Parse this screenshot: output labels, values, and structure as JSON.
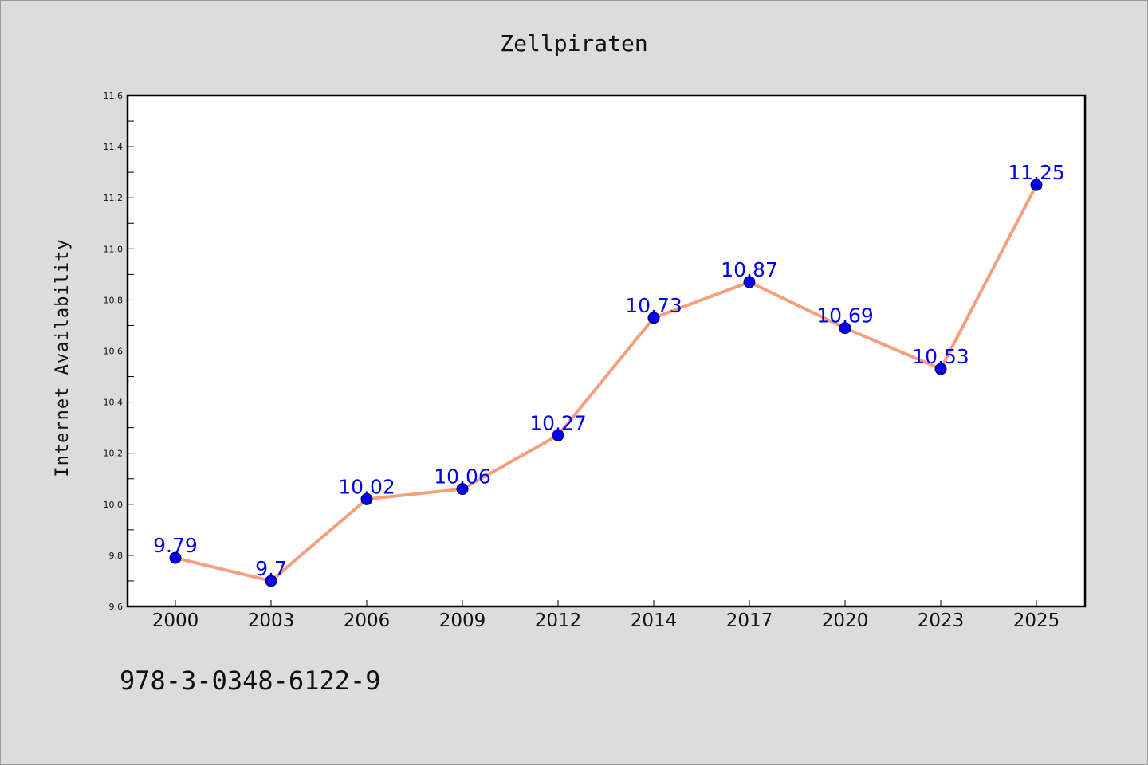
{
  "chart_data": {
    "type": "line",
    "title": "Zellpiraten",
    "xlabel": "",
    "ylabel": "Internet Availability",
    "categories": [
      "2000",
      "2003",
      "2006",
      "2009",
      "2012",
      "2014",
      "2017",
      "2020",
      "2023",
      "2025"
    ],
    "series": [
      {
        "values": [
          9.79,
          9.7,
          10.02,
          10.06,
          10.27,
          10.73,
          10.87,
          10.69,
          10.53,
          11.25
        ],
        "labels": [
          "9.79",
          "9.7",
          "10.02",
          "10.06",
          "10.27",
          "10.73",
          "10.87",
          "10.69",
          "10.53",
          "11.25"
        ],
        "line_color": "#f4a07f",
        "marker_color": "#0000ee",
        "label_color": "#0000ee"
      }
    ],
    "ylim": [
      9.6,
      11.6
    ],
    "yticks": [
      "9.6",
      "9.8",
      "10.0",
      "10.2",
      "10.4",
      "10.6",
      "10.8",
      "11.0",
      "11.2",
      "11.4",
      "11.6"
    ],
    "grid": false,
    "legend": "none"
  },
  "footer": {
    "isbn": "978-3-0348-6122-9"
  }
}
